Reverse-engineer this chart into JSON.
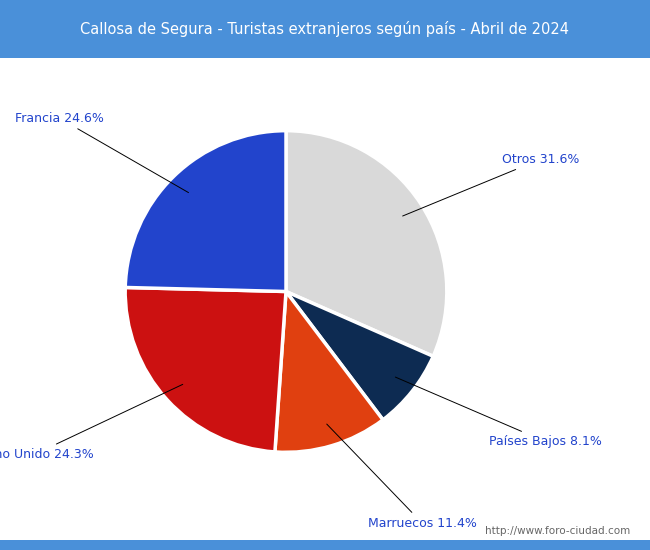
{
  "title": "Callosa de Segura - Turistas extranjeros según país - Abril de 2024",
  "title_bg_color": "#4a90d9",
  "title_text_color": "#ffffff",
  "watermark": "http://www.foro-ciudad.com",
  "slices": [
    {
      "label": "Otros",
      "pct": 31.6,
      "color": "#d9d9d9"
    },
    {
      "label": "Países Bajos",
      "pct": 8.1,
      "color": "#0d2b52"
    },
    {
      "label": "Marruecos",
      "pct": 11.4,
      "color": "#e04010"
    },
    {
      "label": "Reino Unido",
      "pct": 24.3,
      "color": "#cc1111"
    },
    {
      "label": "Francia",
      "pct": 24.6,
      "color": "#2244cc"
    }
  ],
  "label_color": "#2244cc",
  "label_fontsize": 9,
  "startangle": 90,
  "counterclock": false
}
